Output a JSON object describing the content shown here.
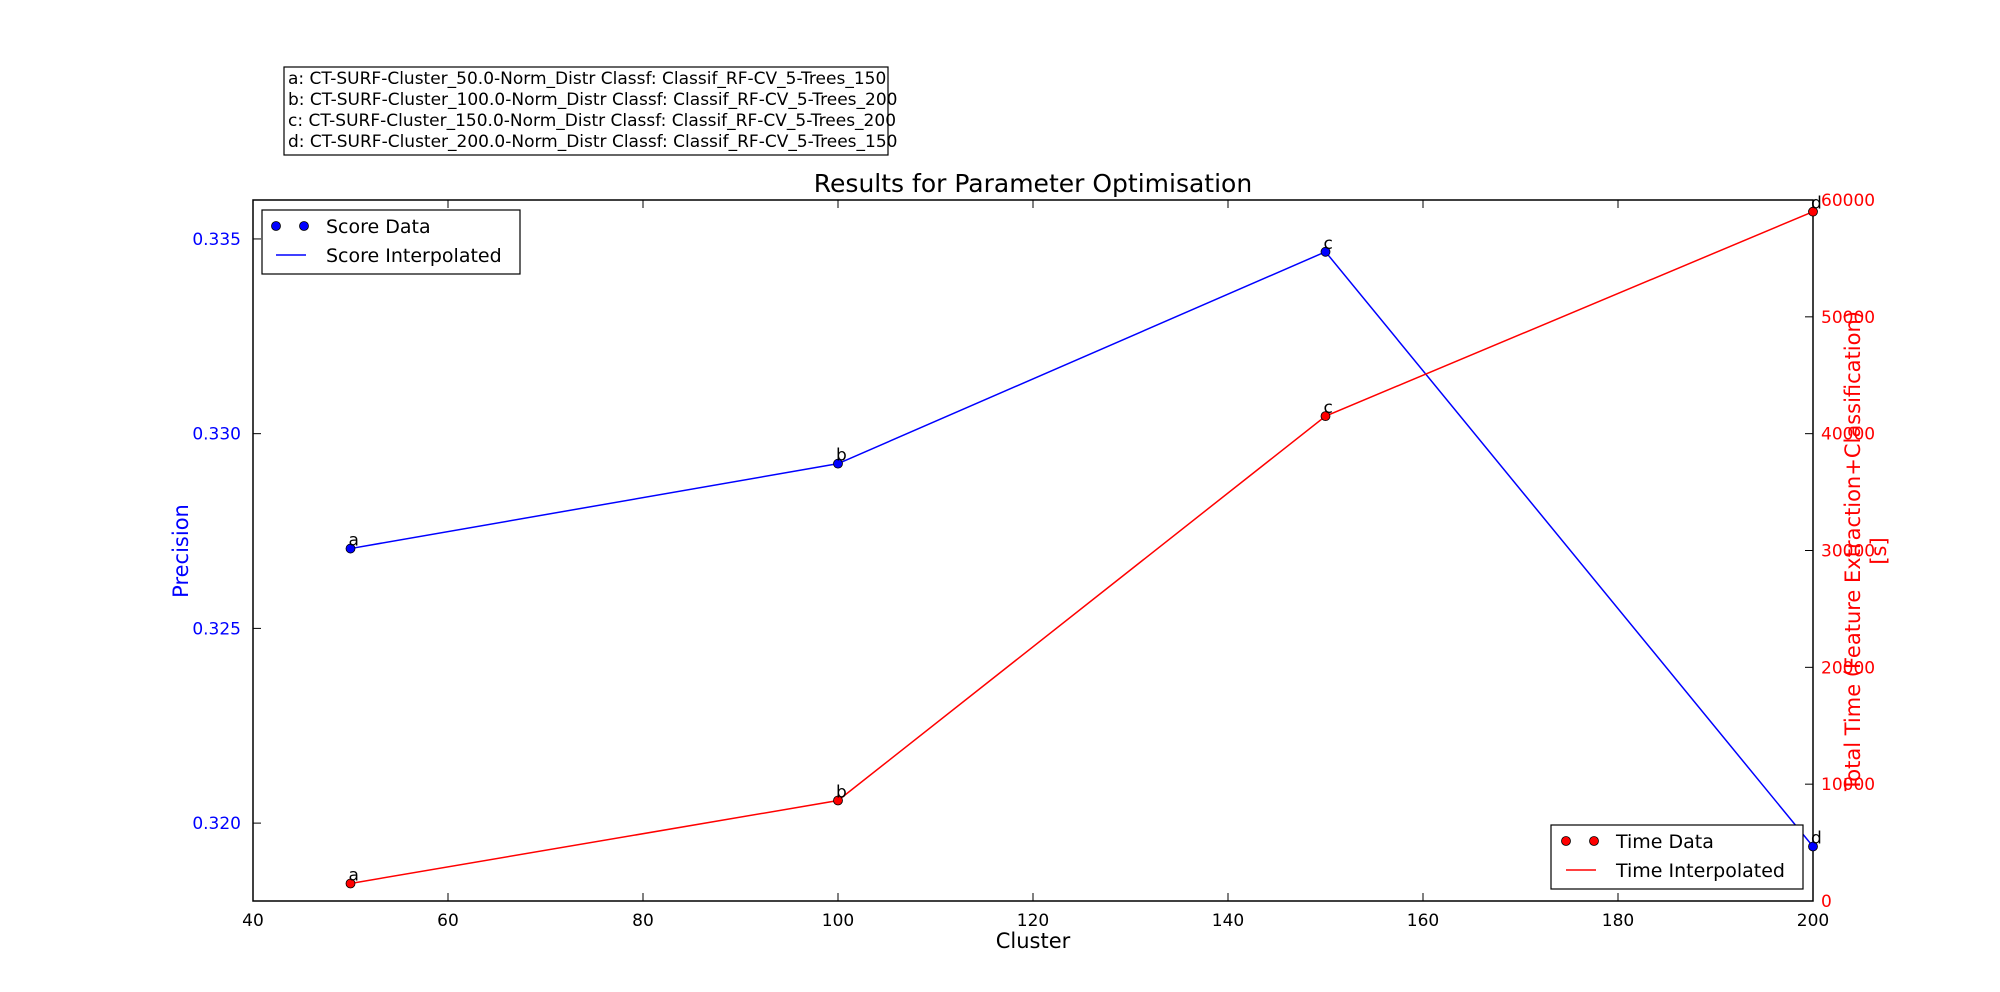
{
  "chart_data": {
    "type": "line",
    "title": "Results for Parameter Optimisation",
    "xlabel": "Cluster",
    "ylabel_left": "Precision",
    "ylabel_right_lines": [
      "Total Time (Feature Extraction+Classification)",
      "[s]"
    ],
    "xlim": [
      40,
      200
    ],
    "ylim_left": [
      0.318,
      0.336
    ],
    "ylim_right": [
      0,
      60000
    ],
    "x_ticks": [
      40,
      60,
      80,
      100,
      120,
      140,
      160,
      180,
      200
    ],
    "y_left_ticks": [
      0.32,
      0.325,
      0.33,
      0.335
    ],
    "y_left_tick_labels": [
      "0.320",
      "0.325",
      "0.330",
      "0.335"
    ],
    "y_right_ticks": [
      0,
      10000,
      20000,
      30000,
      40000,
      50000,
      60000
    ],
    "x": [
      50,
      100,
      150,
      200
    ],
    "point_labels": [
      "a",
      "b",
      "c",
      "d"
    ],
    "series": [
      {
        "name": "Score Data",
        "axis": "left",
        "values": [
          0.32705,
          0.32923,
          0.33467,
          0.3194
        ]
      },
      {
        "name": "Time Data",
        "axis": "right",
        "values": [
          1500,
          8600,
          41500,
          59000
        ]
      }
    ],
    "legend_left": {
      "position": "top-left",
      "entries": [
        {
          "label": "Score Data",
          "kind": "marker"
        },
        {
          "label": "Score Interpolated",
          "kind": "line"
        }
      ]
    },
    "legend_right": {
      "position": "bottom-right",
      "entries": [
        {
          "label": "Time Data",
          "kind": "marker"
        },
        {
          "label": "Time Interpolated",
          "kind": "line"
        }
      ]
    },
    "annotations": [
      "a: CT-SURF-Cluster_50.0-Norm_Distr Classf: Classif_RF-CV_5-Trees_150",
      "b: CT-SURF-Cluster_100.0-Norm_Distr Classf: Classif_RF-CV_5-Trees_200",
      "c: CT-SURF-Cluster_150.0-Norm_Distr Classf: Classif_RF-CV_5-Trees_200",
      "d: CT-SURF-Cluster_200.0-Norm_Distr Classf: Classif_RF-CV_5-Trees_150"
    ],
    "colors": {
      "score": "#0000ff",
      "time": "#ff0000",
      "axis": "#000000"
    },
    "grid": false
  }
}
